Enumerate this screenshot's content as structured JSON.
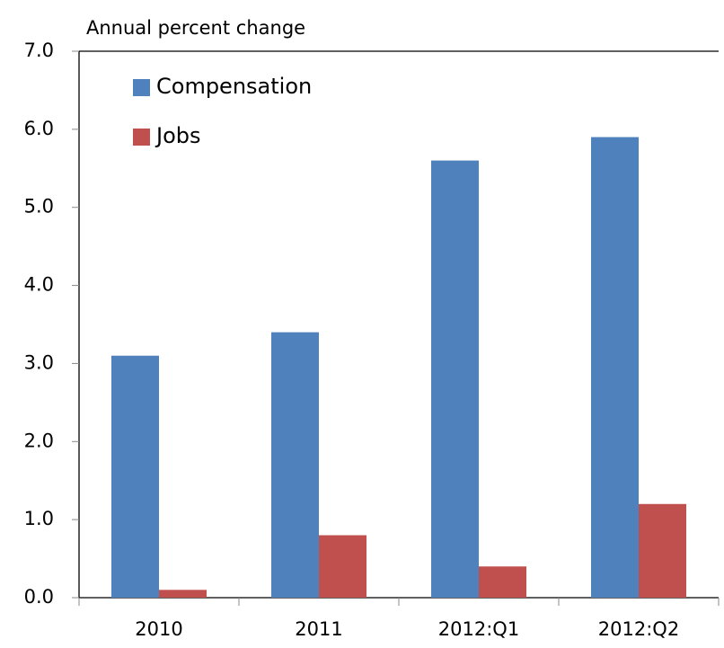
{
  "chart_data": {
    "type": "bar",
    "y_axis_label": "Annual percent change",
    "categories": [
      "2010",
      "2011",
      "2012:Q1",
      "2012:Q2"
    ],
    "series": [
      {
        "name": "Compensation",
        "color": "#4f81bd",
        "values": [
          3.1,
          3.4,
          5.6,
          5.9
        ]
      },
      {
        "name": "Jobs",
        "color": "#c0504d",
        "values": [
          0.1,
          0.8,
          0.4,
          1.2
        ]
      }
    ],
    "ylim": [
      0,
      7
    ],
    "yticks": [
      {
        "value": 0,
        "label": "0.0"
      },
      {
        "value": 1,
        "label": "1.0"
      },
      {
        "value": 2,
        "label": "2.0"
      },
      {
        "value": 3,
        "label": "3.0"
      },
      {
        "value": 4,
        "label": "4.0"
      },
      {
        "value": 5,
        "label": "5.0"
      },
      {
        "value": 6,
        "label": "6.0"
      },
      {
        "value": 7,
        "label": "7.0"
      }
    ],
    "legend": "top-left"
  }
}
